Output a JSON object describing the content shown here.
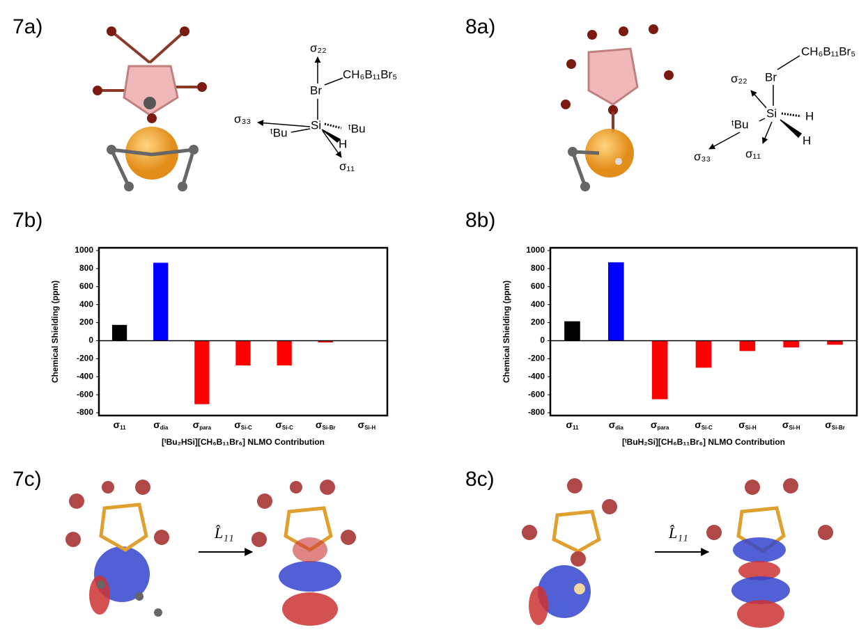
{
  "panels": {
    "p7a": "7a)",
    "p8a": "8a)",
    "p7b": "7b)",
    "p8b": "8b)",
    "p7c": "7c)",
    "p8c": "8c)"
  },
  "structure_7a": {
    "sigma22": "σ₂₂",
    "br": "Br",
    "cage": "CH₆B₁₁Br₅",
    "sigma33": "σ₃₃",
    "tbu1": "ᵗBu",
    "si": "Si",
    "tbu2": "ᵗBu",
    "h": "H",
    "sigma11": "σ₁₁"
  },
  "structure_8a": {
    "cage": "CH₆B₁₁Br₅",
    "sigma22": "σ₂₂",
    "br": "Br",
    "si": "Si",
    "h1": "H",
    "tbu": "ᵗBu",
    "h2": "H",
    "sigma33": "σ₃₃",
    "sigma11": "σ₁₁"
  },
  "operator_7c": "L̂₁₁",
  "operator_8c": "L̂₁₁",
  "chart_data": [
    {
      "type": "bar",
      "ylabel": "Chemical Shielding (ppm)",
      "xlabel": "[ᵗBu₂HSi][CH₆B₁₁Br₆] NLMO Contribution",
      "categories": [
        "σ11",
        "σdia",
        "σpara",
        "σSi-C",
        "σSi-C",
        "σSi-Br",
        "σSi-H"
      ],
      "values": [
        175,
        865,
        -705,
        -275,
        -275,
        -20,
        0
      ],
      "colors": [
        "#000000",
        "#0000ff",
        "#ff0000",
        "#ff0000",
        "#ff0000",
        "#ff0000",
        "#ff0000"
      ],
      "ylim": [
        -800,
        1000
      ],
      "yticks": [
        -800,
        -600,
        -400,
        -200,
        0,
        200,
        400,
        600,
        800,
        1000
      ]
    },
    {
      "type": "bar",
      "ylabel": "Chemical Shielding (ppm)",
      "xlabel": "[ᵗBuH₂Si][CH₆B₁₁Br₆] NLMO Contribution",
      "categories": [
        "σ11",
        "σdia",
        "σpara",
        "σSi-C",
        "σSi-H",
        "σSi-H",
        "σSi-Br"
      ],
      "values": [
        215,
        870,
        -650,
        -300,
        -115,
        -75,
        -45
      ],
      "colors": [
        "#000000",
        "#0000ff",
        "#ff0000",
        "#ff0000",
        "#ff0000",
        "#ff0000",
        "#ff0000"
      ],
      "ylim": [
        -800,
        1000
      ],
      "yticks": [
        -800,
        -600,
        -400,
        -200,
        0,
        200,
        400,
        600,
        800,
        1000
      ]
    }
  ]
}
